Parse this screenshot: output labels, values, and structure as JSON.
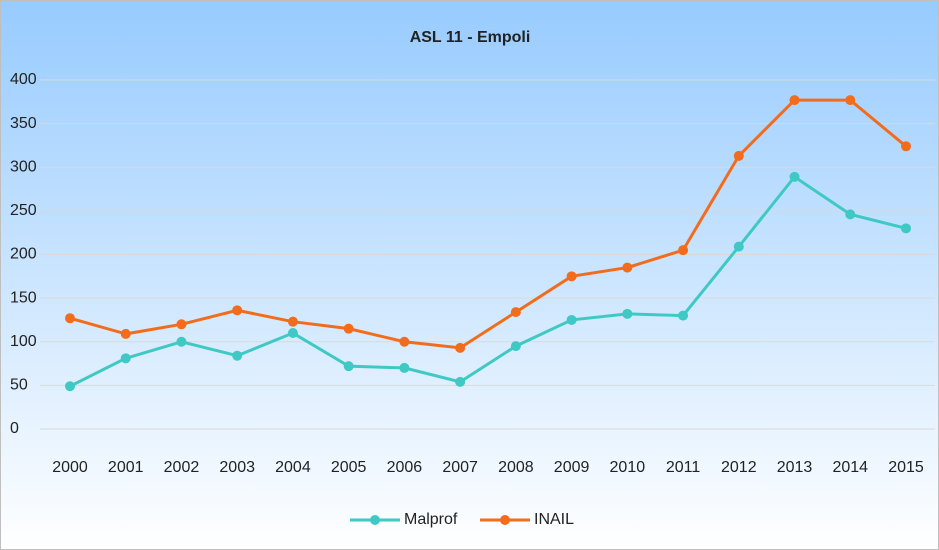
{
  "chart_data": {
    "type": "line",
    "title": "ASL 11 - Empoli",
    "categories": [
      "2000",
      "2001",
      "2002",
      "2003",
      "2004",
      "2005",
      "2006",
      "2007",
      "2008",
      "2009",
      "2010",
      "2011",
      "2012",
      "2013",
      "2014",
      "2015"
    ],
    "series": [
      {
        "name": "Malprof",
        "color": "#3fc9c4",
        "values": [
          49,
          81,
          100,
          84,
          110,
          72,
          70,
          54,
          95,
          125,
          132,
          130,
          209,
          289,
          246,
          230
        ]
      },
      {
        "name": "INAIL",
        "color": "#f36c1c",
        "values": [
          127,
          109,
          120,
          136,
          123,
          115,
          100,
          93,
          134,
          175,
          185,
          205,
          313,
          377,
          377,
          324
        ]
      }
    ],
    "ylim": [
      0,
      400
    ],
    "yticks": [
      0,
      50,
      100,
      150,
      200,
      250,
      300,
      350,
      400
    ],
    "grid": true,
    "legend": "bottom"
  }
}
